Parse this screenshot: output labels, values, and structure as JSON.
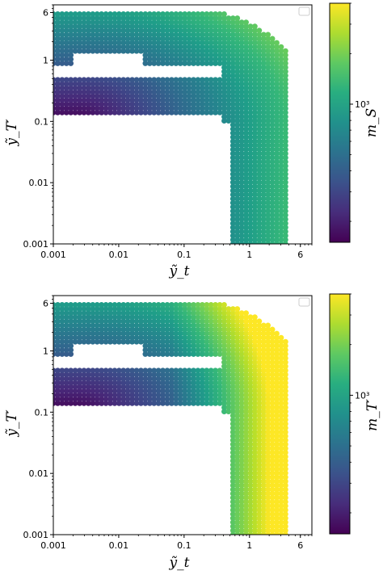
{
  "chart_data": [
    {
      "type": "scatter",
      "xlabel": "ỹ_t",
      "ylabel": "ỹ_T′",
      "xscale": "log",
      "yscale": "log",
      "xlim": [
        0.001,
        9
      ],
      "ylim": [
        0.001,
        8
      ],
      "xticks": [
        {
          "value": 0.001,
          "label": "0.001"
        },
        {
          "value": 0.01,
          "label": "0.01"
        },
        {
          "value": 0.1,
          "label": "0.1"
        },
        {
          "value": 1,
          "label": "1"
        },
        {
          "value": 6,
          "label": "6"
        }
      ],
      "yticks": [
        {
          "value": 0.001,
          "label": "0.001"
        },
        {
          "value": 0.01,
          "label": "0.01"
        },
        {
          "value": 0.1,
          "label": "0.1"
        },
        {
          "value": 1,
          "label": "1"
        },
        {
          "value": 6,
          "label": "6"
        }
      ],
      "grid": false,
      "legend_location": "upper right",
      "colorbar": {
        "label": "m_S",
        "scale": "log",
        "colormap": "viridis",
        "range": [
          150,
          4000
        ],
        "ticks": [
          {
            "value": 1000,
            "label": "10³"
          }
        ]
      },
      "data_region": "Points on a log grid of ỹ_t ∈ [0.001, 4] and ỹ_T′ ∈ [0.001, 6]; two horizontal bands (ỹ_T′ ≈ 0.14–0.55 and ≈ 0.8–6) for small ỹ_t, a vertical band ỹ_t ≈ 0.4–4 for small ỹ_T′, bounded by an arc corner; color increases with coupling",
      "colors": {
        "low": "#440154",
        "mid": "#21918c",
        "high": "#fde725"
      }
    },
    {
      "type": "scatter",
      "xlabel": "ỹ_t",
      "ylabel": "ỹ_T′",
      "xscale": "log",
      "yscale": "log",
      "xlim": [
        0.001,
        9
      ],
      "ylim": [
        0.001,
        8
      ],
      "xticks": [
        {
          "value": 0.001,
          "label": "0.001"
        },
        {
          "value": 0.01,
          "label": "0.01"
        },
        {
          "value": 0.1,
          "label": "0.1"
        },
        {
          "value": 1,
          "label": "1"
        },
        {
          "value": 6,
          "label": "6"
        }
      ],
      "yticks": [
        {
          "value": 0.001,
          "label": "0.001"
        },
        {
          "value": 0.01,
          "label": "0.01"
        },
        {
          "value": 0.1,
          "label": "0.1"
        },
        {
          "value": 1,
          "label": "1"
        },
        {
          "value": 6,
          "label": "6"
        }
      ],
      "grid": false,
      "legend_location": "upper right",
      "colorbar": {
        "label": "m_T′",
        "scale": "log",
        "colormap": "viridis",
        "range": [
          150,
          4000
        ],
        "ticks": [
          {
            "value": 1000,
            "label": "10³"
          }
        ]
      },
      "data_region": "Same parameter region as the top panel; colored by m_T′, with large values (yellow) over most of the corner and vertical band",
      "colors": {
        "low": "#440154",
        "mid": "#21918c",
        "high": "#fde725"
      }
    }
  ]
}
